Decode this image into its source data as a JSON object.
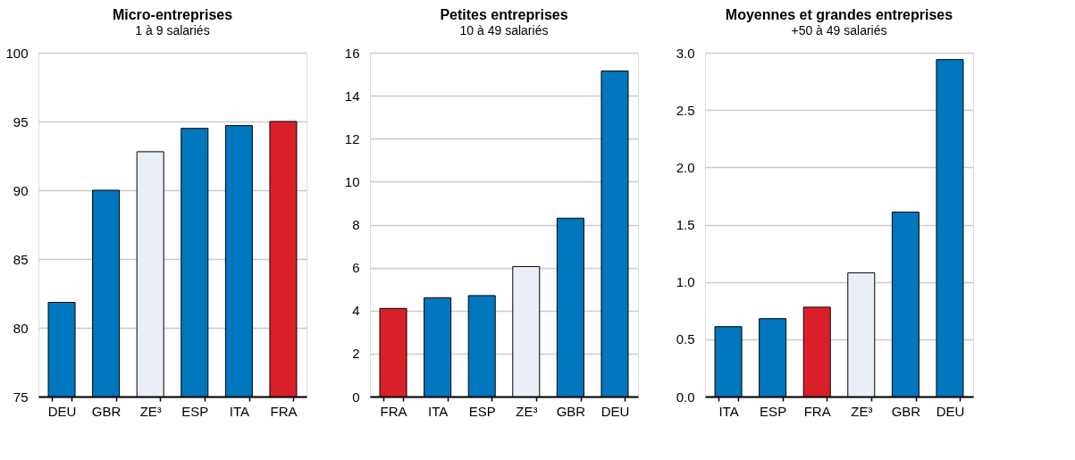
{
  "chart_data": [
    {
      "type": "bar",
      "title": "Micro-entreprises",
      "subtitle": "1 à 9 salariés",
      "categories": [
        "DEU",
        "GBR",
        "ZE³",
        "ESP",
        "ITA",
        "FRA"
      ],
      "values": [
        81.85,
        90.0,
        92.8,
        94.5,
        94.7,
        95.0
      ],
      "colors": [
        "#0077bf",
        "#0077bf",
        "#eaeef7",
        "#0077bf",
        "#0077bf",
        "#d9202a"
      ],
      "ylim": [
        75,
        100
      ],
      "yticks": [
        75,
        80,
        85,
        90,
        95,
        100
      ],
      "grid": "y",
      "legend": false
    },
    {
      "type": "bar",
      "title": "Petites entreprises",
      "subtitle": "10 à 49 salariés",
      "categories": [
        "FRA",
        "ITA",
        "ESP",
        "ZE³",
        "GBR",
        "DEU"
      ],
      "values": [
        4.1,
        4.6,
        4.7,
        6.05,
        8.3,
        15.15
      ],
      "colors": [
        "#d9202a",
        "#0077bf",
        "#0077bf",
        "#eaeef7",
        "#0077bf",
        "#0077bf"
      ],
      "ylim": [
        0,
        16
      ],
      "yticks": [
        0,
        2,
        4,
        6,
        8,
        10,
        12,
        14,
        16
      ],
      "grid": "y",
      "legend": false
    },
    {
      "type": "bar",
      "title": "Moyennes et grandes entreprises",
      "subtitle": "+50 à 49 salariés",
      "categories": [
        "ITA",
        "ESP",
        "FRA",
        "ZE³",
        "GBR",
        "DEU"
      ],
      "values": [
        0.61,
        0.68,
        0.78,
        1.08,
        1.61,
        2.94
      ],
      "colors": [
        "#0077bf",
        "#0077bf",
        "#d9202a",
        "#eaeef7",
        "#0077bf",
        "#0077bf"
      ],
      "ylim": [
        0,
        3
      ],
      "yticks": [
        {
          "value": 0,
          "label": "0.0"
        },
        0.5,
        {
          "value": 1,
          "label": "1.0"
        },
        1.5,
        {
          "value": 2,
          "label": "2.0"
        },
        2.5,
        {
          "value": 3,
          "label": "3.0"
        }
      ],
      "grid": "y",
      "legend": false
    }
  ]
}
